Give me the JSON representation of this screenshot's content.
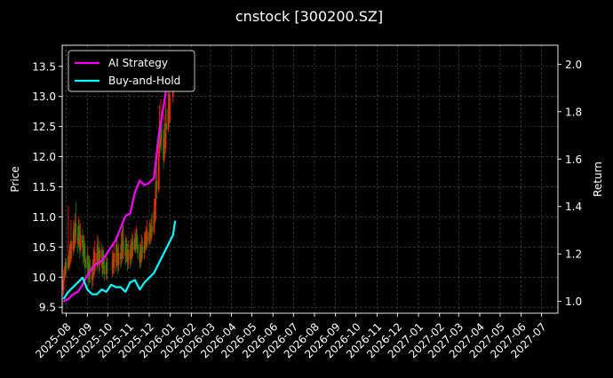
{
  "chart_data": {
    "type": "line",
    "title": "cnstock [300200.SZ]",
    "ylabel_left": "Price",
    "ylabel_right": "Return",
    "xlabel": "",
    "ylim_left": [
      9.4,
      13.85
    ],
    "ylim_right": [
      0.95,
      2.08
    ],
    "xlim": [
      "2025-07-26",
      "2027-07-25"
    ],
    "yticks_left": [
      9.5,
      10.0,
      10.5,
      11.0,
      11.5,
      12.0,
      12.5,
      13.0,
      13.5
    ],
    "yticks_right": [
      1.0,
      1.2,
      1.4,
      1.6,
      1.8,
      2.0
    ],
    "xticks": [
      "2025-08",
      "2025-09",
      "2025-10",
      "2025-11",
      "2025-12",
      "2026-01",
      "2026-02",
      "2026-03",
      "2026-04",
      "2026-05",
      "2026-06",
      "2026-07",
      "2026-08",
      "2026-09",
      "2026-10",
      "2026-11",
      "2026-12",
      "2027-01",
      "2027-02",
      "2027-03",
      "2027-04",
      "2027-05",
      "2027-06",
      "2027-07"
    ],
    "grid": true,
    "legend_position": "top-left",
    "colors": {
      "background": "#000000",
      "ai_strategy": "#ff00ff",
      "buy_and_hold": "#00ffff",
      "candle_up": "#ff2200",
      "candle_down": "#0c8a0c"
    },
    "series": [
      {
        "name": "AI Strategy",
        "axis": "right",
        "points": [
          [
            "2025-07-28",
            1.0
          ],
          [
            "2025-08-04",
            1.01
          ],
          [
            "2025-08-11",
            1.03
          ],
          [
            "2025-08-18",
            1.04
          ],
          [
            "2025-08-25",
            1.07
          ],
          [
            "2025-09-01",
            1.11
          ],
          [
            "2025-09-08",
            1.14
          ],
          [
            "2025-09-15",
            1.16
          ],
          [
            "2025-09-22",
            1.17
          ],
          [
            "2025-09-29",
            1.2
          ],
          [
            "2025-10-06",
            1.23
          ],
          [
            "2025-10-13",
            1.26
          ],
          [
            "2025-10-20",
            1.31
          ],
          [
            "2025-10-27",
            1.36
          ],
          [
            "2025-11-03",
            1.37
          ],
          [
            "2025-11-10",
            1.46
          ],
          [
            "2025-11-17",
            1.51
          ],
          [
            "2025-11-24",
            1.49
          ],
          [
            "2025-12-01",
            1.5
          ],
          [
            "2025-12-08",
            1.52
          ],
          [
            "2025-12-15",
            1.7
          ],
          [
            "2025-12-22",
            1.82
          ],
          [
            "2025-12-29",
            1.95
          ],
          [
            "2026-01-05",
            2.02
          ],
          [
            "2026-01-08",
            2.0
          ]
        ]
      },
      {
        "name": "Buy-and-Hold",
        "axis": "right",
        "points": [
          [
            "2025-07-28",
            1.01
          ],
          [
            "2025-08-04",
            1.04
          ],
          [
            "2025-08-11",
            1.06
          ],
          [
            "2025-08-18",
            1.08
          ],
          [
            "2025-08-25",
            1.1
          ],
          [
            "2025-09-01",
            1.05
          ],
          [
            "2025-09-08",
            1.03
          ],
          [
            "2025-09-15",
            1.03
          ],
          [
            "2025-09-22",
            1.05
          ],
          [
            "2025-09-29",
            1.04
          ],
          [
            "2025-10-06",
            1.07
          ],
          [
            "2025-10-13",
            1.06
          ],
          [
            "2025-10-20",
            1.06
          ],
          [
            "2025-10-27",
            1.04
          ],
          [
            "2025-11-03",
            1.08
          ],
          [
            "2025-11-10",
            1.09
          ],
          [
            "2025-11-17",
            1.05
          ],
          [
            "2025-11-24",
            1.08
          ],
          [
            "2025-12-01",
            1.1
          ],
          [
            "2025-12-08",
            1.12
          ],
          [
            "2025-12-15",
            1.16
          ],
          [
            "2025-12-22",
            1.2
          ],
          [
            "2025-12-29",
            1.24
          ],
          [
            "2026-01-05",
            1.28
          ],
          [
            "2026-01-08",
            1.34
          ]
        ]
      }
    ],
    "candles": [
      [
        "2025-07-28",
        9.78,
        9.95,
        9.7,
        10.02
      ],
      [
        "2025-07-29",
        9.95,
        10.12,
        9.9,
        10.18
      ],
      [
        "2025-07-30",
        10.12,
        10.05,
        9.98,
        10.22
      ],
      [
        "2025-07-31",
        10.05,
        10.25,
        10.0,
        10.32
      ],
      [
        "2025-08-01",
        10.25,
        10.15,
        10.08,
        10.3
      ],
      [
        "2025-08-04",
        10.15,
        10.35,
        10.1,
        11.18
      ],
      [
        "2025-08-05",
        10.35,
        10.2,
        10.12,
        10.45
      ],
      [
        "2025-08-06",
        10.2,
        10.45,
        10.15,
        10.55
      ],
      [
        "2025-08-07",
        10.45,
        10.3,
        10.22,
        10.6
      ],
      [
        "2025-08-08",
        10.3,
        10.6,
        10.25,
        10.95
      ],
      [
        "2025-08-11",
        10.6,
        10.45,
        10.35,
        10.75
      ],
      [
        "2025-08-12",
        10.45,
        10.8,
        10.4,
        10.95
      ],
      [
        "2025-08-13",
        10.8,
        10.55,
        10.45,
        10.9
      ],
      [
        "2025-08-14",
        10.55,
        10.9,
        10.5,
        11.05
      ],
      [
        "2025-08-15",
        10.9,
        10.7,
        10.6,
        11.25
      ],
      [
        "2025-08-18",
        10.7,
        10.55,
        10.4,
        10.85
      ],
      [
        "2025-08-19",
        10.55,
        10.85,
        10.5,
        11.0
      ],
      [
        "2025-08-20",
        10.85,
        10.6,
        10.45,
        10.95
      ],
      [
        "2025-08-21",
        10.6,
        10.45,
        10.3,
        10.75
      ],
      [
        "2025-08-22",
        10.45,
        10.7,
        10.4,
        10.9
      ],
      [
        "2025-08-25",
        10.7,
        10.5,
        10.35,
        10.8
      ],
      [
        "2025-08-26",
        10.5,
        10.35,
        10.2,
        10.65
      ],
      [
        "2025-08-27",
        10.35,
        10.55,
        10.25,
        10.7
      ],
      [
        "2025-08-28",
        10.55,
        10.3,
        10.15,
        10.6
      ],
      [
        "2025-08-29",
        10.3,
        10.15,
        10.0,
        10.45
      ],
      [
        "2025-09-01",
        10.15,
        10.35,
        10.05,
        10.5
      ],
      [
        "2025-09-02",
        10.35,
        10.1,
        9.95,
        10.4
      ],
      [
        "2025-09-03",
        10.1,
        10.0,
        9.85,
        10.25
      ],
      [
        "2025-09-04",
        10.0,
        10.2,
        9.9,
        10.35
      ],
      [
        "2025-09-05",
        10.2,
        10.05,
        9.9,
        10.3
      ],
      [
        "2025-09-08",
        10.05,
        9.95,
        9.8,
        10.2
      ],
      [
        "2025-09-09",
        9.95,
        10.15,
        9.85,
        10.3
      ],
      [
        "2025-09-10",
        10.15,
        10.3,
        10.05,
        10.5
      ],
      [
        "2025-09-11",
        10.3,
        10.1,
        10.0,
        10.45
      ],
      [
        "2025-09-12",
        10.1,
        10.4,
        10.05,
        10.6
      ],
      [
        "2025-09-15",
        10.4,
        10.25,
        10.1,
        10.55
      ],
      [
        "2025-09-16",
        10.25,
        10.5,
        10.15,
        10.7
      ],
      [
        "2025-09-17",
        10.5,
        10.35,
        10.2,
        10.65
      ],
      [
        "2025-09-18",
        10.35,
        10.2,
        10.05,
        10.5
      ],
      [
        "2025-09-19",
        10.2,
        10.45,
        10.1,
        10.6
      ],
      [
        "2025-09-22",
        10.45,
        10.3,
        10.15,
        10.55
      ],
      [
        "2025-09-23",
        10.3,
        10.15,
        10.0,
        10.45
      ],
      [
        "2025-09-24",
        10.15,
        10.35,
        10.05,
        10.5
      ],
      [
        "2025-09-25",
        10.35,
        10.2,
        10.05,
        10.45
      ],
      [
        "2025-09-26",
        10.2,
        10.05,
        9.95,
        10.35
      ],
      [
        "2025-09-29",
        10.05,
        10.25,
        9.95,
        10.4
      ],
      [
        "2025-09-30",
        10.25,
        10.1,
        9.95,
        10.35
      ],
      [
        "2025-10-08",
        10.1,
        10.3,
        10.0,
        10.45
      ],
      [
        "2025-10-09",
        10.3,
        10.15,
        10.05,
        10.4
      ],
      [
        "2025-10-10",
        10.15,
        10.4,
        10.05,
        10.55
      ],
      [
        "2025-10-13",
        10.4,
        10.25,
        10.1,
        10.55
      ],
      [
        "2025-10-14",
        10.25,
        10.5,
        10.15,
        10.7
      ],
      [
        "2025-10-15",
        10.5,
        10.3,
        10.2,
        10.65
      ],
      [
        "2025-10-16",
        10.3,
        10.2,
        10.05,
        10.45
      ],
      [
        "2025-10-17",
        10.2,
        10.4,
        10.1,
        10.55
      ],
      [
        "2025-10-20",
        10.4,
        10.3,
        10.15,
        10.55
      ],
      [
        "2025-10-21",
        10.3,
        10.55,
        10.2,
        10.75
      ],
      [
        "2025-10-22",
        10.55,
        10.4,
        10.25,
        10.8
      ],
      [
        "2025-10-23",
        10.4,
        10.6,
        10.3,
        10.85
      ],
      [
        "2025-10-24",
        10.6,
        10.45,
        10.3,
        11.0
      ],
      [
        "2025-10-27",
        10.45,
        10.35,
        10.2,
        10.65
      ],
      [
        "2025-10-28",
        10.35,
        10.55,
        10.25,
        10.7
      ],
      [
        "2025-10-29",
        10.55,
        10.4,
        10.25,
        10.65
      ],
      [
        "2025-10-30",
        10.4,
        10.25,
        10.1,
        10.55
      ],
      [
        "2025-10-31",
        10.25,
        10.45,
        10.15,
        10.6
      ],
      [
        "2025-11-03",
        10.45,
        10.3,
        10.15,
        10.55
      ],
      [
        "2025-11-04",
        10.3,
        10.5,
        10.2,
        10.65
      ],
      [
        "2025-11-05",
        10.5,
        10.35,
        10.25,
        10.6
      ],
      [
        "2025-11-06",
        10.35,
        10.6,
        10.3,
        10.75
      ],
      [
        "2025-11-07",
        10.6,
        10.45,
        10.35,
        10.7
      ],
      [
        "2025-11-10",
        10.45,
        10.65,
        10.4,
        10.8
      ],
      [
        "2025-11-11",
        10.65,
        10.5,
        10.4,
        10.75
      ],
      [
        "2025-11-12",
        10.5,
        10.7,
        10.45,
        10.85
      ],
      [
        "2025-11-13",
        10.7,
        10.55,
        10.45,
        10.8
      ],
      [
        "2025-11-14",
        10.55,
        10.4,
        10.3,
        10.65
      ],
      [
        "2025-11-17",
        10.4,
        10.25,
        10.15,
        10.55
      ],
      [
        "2025-11-18",
        10.25,
        10.45,
        10.15,
        10.6
      ],
      [
        "2025-11-19",
        10.45,
        10.3,
        10.2,
        10.55
      ],
      [
        "2025-11-20",
        10.3,
        10.5,
        10.25,
        10.7
      ],
      [
        "2025-11-21",
        10.5,
        10.4,
        10.3,
        10.65
      ],
      [
        "2025-11-24",
        10.4,
        10.6,
        10.3,
        10.75
      ],
      [
        "2025-11-25",
        10.6,
        10.5,
        10.4,
        10.75
      ],
      [
        "2025-11-26",
        10.5,
        10.7,
        10.45,
        10.85
      ],
      [
        "2025-11-27",
        10.7,
        10.55,
        10.45,
        10.8
      ],
      [
        "2025-11-28",
        10.55,
        10.75,
        10.5,
        10.95
      ],
      [
        "2025-12-01",
        10.75,
        10.6,
        10.5,
        10.9
      ],
      [
        "2025-12-02",
        10.6,
        10.8,
        10.55,
        10.95
      ],
      [
        "2025-12-03",
        10.8,
        10.65,
        10.55,
        10.9
      ],
      [
        "2025-12-04",
        10.65,
        10.85,
        10.6,
        11.0
      ],
      [
        "2025-12-05",
        10.85,
        10.75,
        10.65,
        11.05
      ],
      [
        "2025-12-08",
        10.75,
        11.1,
        10.7,
        11.3
      ],
      [
        "2025-12-09",
        11.1,
        10.95,
        10.85,
        11.25
      ],
      [
        "2025-12-10",
        10.95,
        11.3,
        10.9,
        11.55
      ],
      [
        "2025-12-11",
        11.3,
        11.6,
        11.2,
        11.8
      ],
      [
        "2025-12-12",
        11.6,
        11.45,
        11.3,
        12.2
      ],
      [
        "2025-12-15",
        11.45,
        12.1,
        11.4,
        12.35
      ],
      [
        "2025-12-16",
        12.1,
        12.5,
        12.0,
        12.85
      ],
      [
        "2025-12-17",
        12.5,
        12.2,
        12.05,
        12.6
      ],
      [
        "2025-12-18",
        12.2,
        12.6,
        12.15,
        12.95
      ],
      [
        "2025-12-19",
        12.6,
        12.3,
        12.1,
        12.75
      ],
      [
        "2025-12-22",
        12.3,
        11.95,
        11.8,
        12.45
      ],
      [
        "2025-12-23",
        11.95,
        12.4,
        11.9,
        12.7
      ],
      [
        "2025-12-24",
        12.4,
        12.15,
        12.0,
        12.55
      ],
      [
        "2025-12-25",
        12.15,
        12.55,
        12.05,
        12.9
      ],
      [
        "2025-12-26",
        12.55,
        12.45,
        12.3,
        12.8
      ],
      [
        "2025-12-29",
        12.45,
        12.8,
        12.4,
        13.1
      ],
      [
        "2025-12-30",
        12.8,
        12.6,
        12.5,
        13.05
      ],
      [
        "2025-12-31",
        12.6,
        13.0,
        12.55,
        13.35
      ],
      [
        "2026-01-05",
        13.0,
        13.25,
        12.9,
        13.55
      ],
      [
        "2026-01-06",
        13.25,
        13.45,
        13.15,
        13.65
      ],
      [
        "2026-01-07",
        13.45,
        13.2,
        13.1,
        13.6
      ],
      [
        "2026-01-08",
        13.2,
        13.55,
        13.15,
        13.7
      ]
    ]
  }
}
